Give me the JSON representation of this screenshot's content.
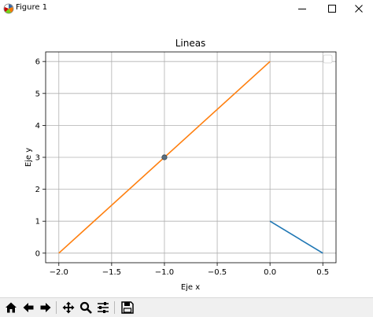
{
  "window": {
    "title": "Figure 1",
    "controls": {
      "minimize": "minimize",
      "maximize": "maximize",
      "close": "close"
    }
  },
  "chart_data": {
    "type": "line",
    "title": "Lineas",
    "xlabel": "Eje x",
    "ylabel": "Eje y",
    "xlim": [
      -2.125,
      0.625
    ],
    "ylim": [
      -0.3,
      6.3
    ],
    "xticks": [
      -2.0,
      -1.5,
      -1.0,
      -0.5,
      0.0,
      0.5
    ],
    "xtick_labels": [
      "−2.0",
      "−1.5",
      "−1.0",
      "−0.5",
      "0.0",
      "0.5"
    ],
    "yticks": [
      0,
      1,
      2,
      3,
      4,
      5,
      6
    ],
    "ytick_labels": [
      "0",
      "1",
      "2",
      "3",
      "4",
      "5",
      "6"
    ],
    "grid": true,
    "legend": {
      "placement": "top-right",
      "entries": []
    },
    "series": [
      {
        "x": [
          0.0,
          0.5
        ],
        "y": [
          1,
          0
        ],
        "color": "#1f77b4"
      },
      {
        "x": [
          -2.0,
          0.0
        ],
        "y": [
          0,
          6
        ],
        "color": "#ff7f0e"
      }
    ],
    "points": [
      {
        "x": -1.0,
        "y": 3,
        "color": "#5b6f7f"
      }
    ]
  },
  "toolbar": {
    "buttons": [
      {
        "name": "home-button",
        "icon": "home-icon"
      },
      {
        "name": "back-button",
        "icon": "arrow-left-icon"
      },
      {
        "name": "forward-button",
        "icon": "arrow-right-icon"
      },
      {
        "name": "pan-button",
        "icon": "move-icon"
      },
      {
        "name": "zoom-button",
        "icon": "magnifier-icon"
      },
      {
        "name": "configure-subplots-button",
        "icon": "sliders-icon"
      },
      {
        "name": "save-button",
        "icon": "floppy-disk-icon"
      }
    ]
  }
}
